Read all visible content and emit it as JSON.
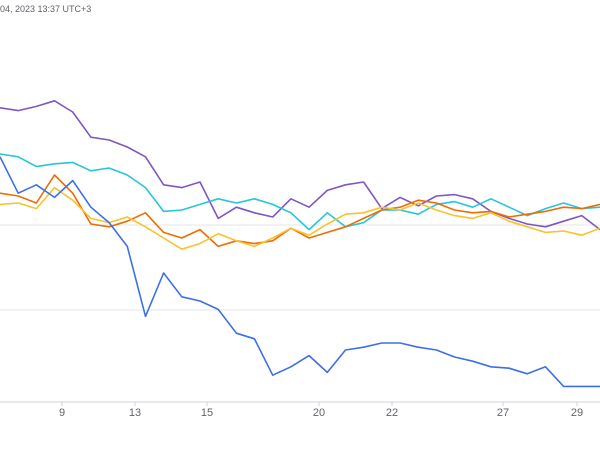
{
  "header": {
    "timestamp": "04, 2023 13:37 UTC+3"
  },
  "chart_data": {
    "type": "line",
    "xlabel": "",
    "ylabel": "",
    "grid": true,
    "x_tick_labels": [
      "9",
      "13",
      "15",
      "20",
      "22",
      "27",
      "29"
    ],
    "series": [
      {
        "color": "#7e57c2",
        "values": [
          0.3,
          0.1,
          0.4,
          0.8,
          0.0,
          -1.8,
          -2.0,
          -2.5,
          -3.2,
          -5.2,
          -5.4,
          -5.0,
          -7.6,
          -6.8,
          -7.2,
          -7.5,
          -6.2,
          -6.8,
          -5.6,
          -5.2,
          -5.0,
          -6.9,
          -6.1,
          -6.7,
          -6.0,
          -5.9,
          -6.2,
          -7.1,
          -7.6,
          -8.0,
          -8.2,
          -7.8,
          -7.4,
          -8.4
        ]
      },
      {
        "color": "#26c6da",
        "values": [
          -3.0,
          -3.2,
          -3.9,
          -3.7,
          -3.6,
          -4.2,
          -4.0,
          -4.5,
          -5.4,
          -7.1,
          -7.0,
          -6.6,
          -6.2,
          -6.5,
          -6.2,
          -6.6,
          -7.2,
          -8.4,
          -7.2,
          -8.2,
          -7.9,
          -7.0,
          -7.0,
          -7.3,
          -6.6,
          -6.4,
          -6.8,
          -6.2,
          -6.8,
          -7.4,
          -6.9,
          -6.5,
          -6.9,
          -6.8
        ]
      },
      {
        "color": "#ef6c00",
        "values": [
          -5.8,
          -6.0,
          -6.5,
          -4.5,
          -5.8,
          -8.0,
          -8.2,
          -7.8,
          -7.2,
          -8.6,
          -9.0,
          -8.4,
          -9.6,
          -9.2,
          -9.4,
          -9.2,
          -8.3,
          -9.0,
          -8.6,
          -8.2,
          -7.6,
          -7.0,
          -6.8,
          -6.3,
          -6.5,
          -7.0,
          -7.2,
          -7.1,
          -7.5,
          -7.3,
          -7.1,
          -6.8,
          -6.9,
          -6.6
        ]
      },
      {
        "color": "#fbc02d",
        "values": [
          -6.6,
          -6.5,
          -6.9,
          -5.4,
          -6.3,
          -7.6,
          -7.9,
          -7.5,
          -8.2,
          -9.0,
          -9.8,
          -9.4,
          -8.7,
          -9.2,
          -9.6,
          -9.0,
          -8.3,
          -8.8,
          -8.0,
          -7.3,
          -7.2,
          -6.8,
          -7.0,
          -6.5,
          -7.0,
          -7.4,
          -7.6,
          -7.2,
          -7.8,
          -8.2,
          -8.6,
          -8.5,
          -8.8,
          -8.3
        ]
      },
      {
        "color": "#3d6fe6",
        "values": [
          -3.2,
          -5.8,
          -5.2,
          -6.1,
          -4.9,
          -6.8,
          -7.9,
          -9.6,
          -14.6,
          -11.5,
          -13.2,
          -13.5,
          -14.1,
          -15.8,
          -16.2,
          -18.8,
          -18.2,
          -17.4,
          -18.6,
          -17.0,
          -16.8,
          -16.5,
          -16.5,
          -16.8,
          -17.0,
          -17.5,
          -17.8,
          -18.2,
          -18.3,
          -18.7,
          -18.2,
          -19.6,
          -19.6,
          -19.6
        ]
      }
    ]
  }
}
